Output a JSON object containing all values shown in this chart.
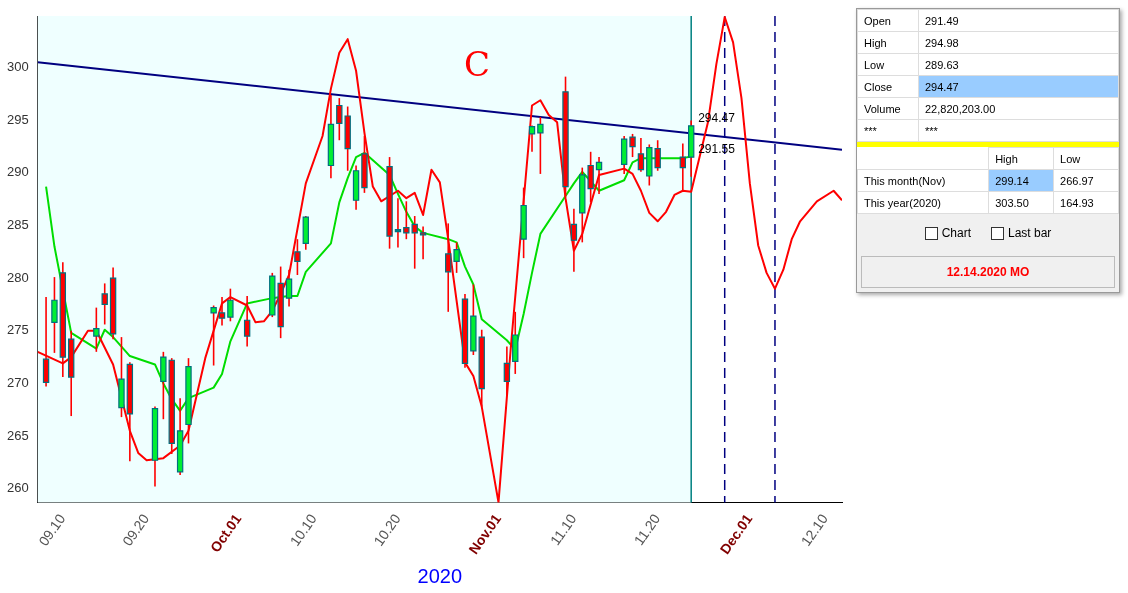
{
  "chart_data": {
    "type": "candlestick",
    "xlabel": "2020",
    "xlim": [
      "2020-09-07",
      "2020-12-12"
    ],
    "xticks": [
      {
        "value": "2020-09-10",
        "label": "09.10"
      },
      {
        "value": "2020-09-20",
        "label": "09.20"
      },
      {
        "value": "2020-10-01",
        "label": "Oct.01"
      },
      {
        "value": "2020-10-10",
        "label": "10.10"
      },
      {
        "value": "2020-10-20",
        "label": "10.20"
      },
      {
        "value": "2020-11-01",
        "label": "Nov.01"
      },
      {
        "value": "2020-11-10",
        "label": "11.10"
      },
      {
        "value": "2020-11-20",
        "label": "11.20"
      },
      {
        "value": "2020-12-01",
        "label": "Dec.01"
      },
      {
        "value": "2020-12-10",
        "label": "12.10"
      }
    ],
    "ylim": [
      258.7,
      304.9
    ],
    "yticks": [
      260,
      265,
      270,
      275,
      280,
      285,
      290,
      295,
      300
    ],
    "grid": false,
    "legend": false,
    "series": [
      {
        "type": "line",
        "color": "#ff0000",
        "x": [
          "2020-09-07",
          "2020-09-10",
          "2020-09-11",
          "2020-09-13",
          "2020-09-14",
          "2020-09-16",
          "2020-09-18",
          "2020-09-19",
          "2020-09-20",
          "2020-09-22",
          "2020-09-24",
          "2020-09-25",
          "2020-09-27",
          "2020-09-29",
          "2020-09-30",
          "2020-10-02",
          "2020-10-03",
          "2020-10-04",
          "2020-10-05",
          "2020-10-06",
          "2020-10-07",
          "2020-10-09",
          "2020-10-11",
          "2020-10-12",
          "2020-10-13",
          "2020-10-14",
          "2020-10-15",
          "2020-10-16",
          "2020-10-17",
          "2020-10-18",
          "2020-10-20",
          "2020-10-21",
          "2020-10-22",
          "2020-10-23",
          "2020-10-24",
          "2020-10-25",
          "2020-10-26",
          "2020-10-28",
          "2020-10-29",
          "2020-10-30",
          "2020-11-01",
          "2020-11-02T12:00",
          "2020-11-05",
          "2020-11-06",
          "2020-11-07",
          "2020-11-08",
          "2020-11-09",
          "2020-11-10",
          "2020-11-11",
          "2020-11-13",
          "2020-11-16",
          "2020-11-17",
          "2020-11-18",
          "2020-11-19",
          "2020-11-20",
          "2020-11-21",
          "2020-11-22",
          "2020-11-23",
          "2020-11-24",
          "2020-11-26",
          "2020-11-27",
          "2020-11-28",
          "2020-11-29",
          "2020-11-30",
          "2020-12-01",
          "2020-12-02",
          "2020-12-03",
          "2020-12-04",
          "2020-12-05",
          "2020-12-06",
          "2020-12-07",
          "2020-12-09",
          "2020-12-11",
          "2020-12-12"
        ],
        "values": [
          273.0,
          271.9,
          272.5,
          275.0,
          275.0,
          271.8,
          265.5,
          263.4,
          262.7,
          262.9,
          264.1,
          265.5,
          272.4,
          277.6,
          278.2,
          277.4,
          275.8,
          275.9,
          276.9,
          278.5,
          280.3,
          289.0,
          293.5,
          298.0,
          301.4,
          302.7,
          299.7,
          293.8,
          288.7,
          287.3,
          288.3,
          287.6,
          288.1,
          286.0,
          290.3,
          289.1,
          283.7,
          272.0,
          270.7,
          267.8,
          258.7,
          273.7,
          296.4,
          296.9,
          295.5,
          294.8,
          287.6,
          282.6,
          284.2,
          289.8,
          290.4,
          289.9,
          288.3,
          286.2,
          285.4,
          286.3,
          287.9,
          288.3,
          288.2,
          294.8,
          300.3,
          304.8,
          302.4,
          297.1,
          289.0,
          283.1,
          280.5,
          279.0,
          280.8,
          283.7,
          285.4,
          287.3,
          288.3,
          287.4
        ]
      },
      {
        "type": "line",
        "color": "#00dd00",
        "x": [
          "2020-09-08",
          "2020-09-09",
          "2020-09-11",
          "2020-09-14",
          "2020-09-15",
          "2020-09-16",
          "2020-09-17",
          "2020-09-18",
          "2020-09-21",
          "2020-09-22",
          "2020-09-23",
          "2020-09-24",
          "2020-09-25",
          "2020-09-28",
          "2020-09-29",
          "2020-09-30",
          "2020-10-02",
          "2020-10-05",
          "2020-10-06",
          "2020-10-07",
          "2020-10-08",
          "2020-10-09",
          "2020-10-12",
          "2020-10-13",
          "2020-10-14",
          "2020-10-15",
          "2020-10-16",
          "2020-10-19",
          "2020-10-20",
          "2020-10-21",
          "2020-10-22",
          "2020-10-23",
          "2020-10-26",
          "2020-10-27",
          "2020-10-28",
          "2020-10-29",
          "2020-10-30",
          "2020-11-02",
          "2020-11-03",
          "2020-11-04",
          "2020-11-05",
          "2020-11-06",
          "2020-11-09",
          "2020-11-10",
          "2020-11-11",
          "2020-11-12",
          "2020-11-13",
          "2020-11-16",
          "2020-11-17",
          "2020-11-18",
          "2020-11-19",
          "2020-11-20",
          "2020-11-23",
          "2020-11-24"
        ],
        "values": [
          288.7,
          283.0,
          274.8,
          273.3,
          275.1,
          274.4,
          273.5,
          272.6,
          271.8,
          270.0,
          268.5,
          267.4,
          268.6,
          269.6,
          270.9,
          274.0,
          277.6,
          278.1,
          278.2,
          278.3,
          278.3,
          280.6,
          283.3,
          287.2,
          289.5,
          291.5,
          291.9,
          289.8,
          288.0,
          286.3,
          284.9,
          284.3,
          283.7,
          283.4,
          281.1,
          279.4,
          276.1,
          274.1,
          273.2,
          276.6,
          280.5,
          284.2,
          287.8,
          289.0,
          290.1,
          289.2,
          288.3,
          289.3,
          291.0,
          291.4,
          291.4,
          291.4,
          291.4,
          291.55
        ]
      },
      {
        "type": "line",
        "color": "#000080",
        "x": [
          "2020-09-07",
          "2020-12-12"
        ],
        "values": [
          300.5,
          292.2
        ]
      },
      {
        "type": "candlestick",
        "color": "#ff0000",
        "x": [
          "2020-09-08",
          "2020-09-09",
          "2020-09-10",
          "2020-09-11",
          "2020-09-14",
          "2020-09-15",
          "2020-09-16",
          "2020-09-17",
          "2020-09-18",
          "2020-09-21",
          "2020-09-22",
          "2020-09-23",
          "2020-09-24",
          "2020-09-25",
          "2020-09-28",
          "2020-09-29",
          "2020-09-30",
          "2020-10-02",
          "2020-10-05",
          "2020-10-06",
          "2020-10-07",
          "2020-10-08",
          "2020-10-09",
          "2020-10-12",
          "2020-10-13",
          "2020-10-14",
          "2020-10-15",
          "2020-10-16",
          "2020-10-19",
          "2020-10-20",
          "2020-10-21",
          "2020-10-22",
          "2020-10-23",
          "2020-10-26",
          "2020-10-27",
          "2020-10-28",
          "2020-10-29",
          "2020-10-30",
          "2020-11-02",
          "2020-11-03",
          "2020-11-04",
          "2020-11-05",
          "2020-11-06",
          "2020-11-09",
          "2020-11-10",
          "2020-11-11",
          "2020-11-12",
          "2020-11-13",
          "2020-11-16",
          "2020-11-17",
          "2020-11-18",
          "2020-11-19",
          "2020-11-20",
          "2020-11-23",
          "2020-11-24"
        ],
        "ohlc": [
          [
            272.3,
            278.2,
            269.7,
            270.1
          ],
          [
            275.8,
            280.1,
            272.9,
            277.9
          ],
          [
            280.5,
            281.5,
            270.6,
            272.5
          ],
          [
            274.2,
            275.0,
            266.9,
            270.6
          ],
          [
            274.5,
            277.2,
            273.0,
            275.2
          ],
          [
            278.5,
            279.5,
            275.6,
            277.5
          ],
          [
            280.0,
            281.0,
            274.2,
            274.7
          ],
          [
            267.7,
            274.4,
            266.8,
            270.4
          ],
          [
            271.8,
            272.0,
            262.6,
            267.1
          ],
          [
            262.7,
            267.8,
            260.2,
            267.6
          ],
          [
            270.2,
            273.0,
            266.6,
            272.5
          ],
          [
            272.2,
            272.4,
            263.3,
            264.3
          ],
          [
            261.6,
            268.6,
            261.3,
            265.5
          ],
          [
            266.1,
            272.4,
            264.3,
            271.6
          ],
          [
            276.7,
            277.4,
            271.7,
            277.2
          ],
          [
            276.7,
            278.2,
            275.5,
            276.2
          ],
          [
            276.3,
            279.0,
            275.9,
            277.9
          ],
          [
            276.0,
            278.3,
            273.5,
            274.5
          ],
          [
            276.5,
            280.5,
            276.3,
            280.2
          ],
          [
            279.5,
            281.1,
            274.3,
            275.4
          ],
          [
            278.1,
            280.8,
            277.3,
            279.9
          ],
          [
            282.5,
            283.7,
            280.3,
            281.6
          ],
          [
            283.3,
            285.9,
            282.7,
            285.8
          ],
          [
            290.7,
            297.4,
            289.5,
            294.6
          ],
          [
            296.4,
            297.1,
            293.1,
            294.7
          ],
          [
            295.4,
            296.3,
            290.2,
            292.3
          ],
          [
            287.4,
            290.7,
            286.5,
            290.2
          ],
          [
            291.8,
            293.5,
            288.1,
            288.6
          ],
          [
            290.6,
            291.5,
            282.8,
            284.0
          ],
          [
            284.6,
            287.6,
            282.9,
            284.6
          ],
          [
            284.8,
            287.3,
            283.7,
            284.3
          ],
          [
            285.1,
            285.9,
            280.9,
            284.3
          ],
          [
            284.3,
            284.9,
            281.8,
            284.2
          ],
          [
            282.3,
            285.2,
            276.8,
            280.6
          ],
          [
            281.6,
            283.4,
            280.5,
            282.7
          ],
          [
            278.0,
            278.5,
            271.5,
            271.9
          ],
          [
            273.1,
            279.4,
            272.7,
            276.4
          ],
          [
            274.4,
            275.1,
            267.8,
            269.5
          ],
          [
            271.9,
            273.5,
            268.8,
            270.2
          ],
          [
            272.1,
            276.8,
            270.9,
            274.6
          ],
          [
            283.7,
            288.6,
            281.9,
            286.9
          ],
          [
            293.7,
            294.5,
            292.0,
            294.4
          ],
          [
            293.8,
            295.3,
            289.9,
            294.6
          ],
          [
            297.7,
            299.14,
            287.8,
            288.7
          ],
          [
            285.1,
            286.6,
            280.6,
            283.6
          ],
          [
            286.2,
            290.5,
            283.4,
            289.8
          ],
          [
            290.7,
            292.0,
            287.2,
            288.5
          ],
          [
            290.3,
            291.5,
            288.0,
            291.0
          ],
          [
            290.8,
            293.5,
            289.9,
            293.2
          ],
          [
            293.4,
            293.7,
            291.5,
            292.5
          ],
          [
            291.8,
            293.3,
            290.1,
            290.3
          ],
          [
            289.7,
            292.7,
            288.8,
            292.4
          ],
          [
            292.3,
            293.1,
            290.2,
            290.5
          ],
          [
            291.5,
            292.8,
            288.3,
            290.5
          ],
          [
            291.49,
            294.98,
            289.63,
            294.47
          ]
        ],
        "colors": [
          "#ff0000",
          "#00ee33",
          "#ff0000",
          "#ff0000",
          "#00ee33",
          "#ff0000",
          "#ff0000",
          "#00ee33",
          "#ff0000",
          "#00ee33",
          "#00ee33",
          "#ff0000",
          "#00ee33",
          "#00ee33",
          "#00ee33",
          "#ff0000",
          "#00ee33",
          "#ff0000",
          "#00ee33",
          "#ff0000",
          "#00ee33",
          "#ff0000",
          "#00ee33",
          "#00ee33",
          "#ff0000",
          "#ff0000",
          "#00ee33",
          "#ff0000",
          "#ff0000",
          "#008080",
          "#ff0000",
          "#ff0000",
          "#ff0000",
          "#ff0000",
          "#00ee33",
          "#ff0000",
          "#00ee33",
          "#ff0000",
          "#ff0000",
          "#00ee33",
          "#00ee33",
          "#00ee33",
          "#00ee33",
          "#ff0000",
          "#ff0000",
          "#00ee33",
          "#ff0000",
          "#00ee33",
          "#00ee33",
          "#ff0000",
          "#ff0000",
          "#00ee33",
          "#ff0000",
          "#ff0000",
          "#00ee33"
        ]
      }
    ],
    "bands": [
      {
        "axis": "x",
        "from": "2020-09-07",
        "to": "2020-11-24",
        "color": "#efffff"
      }
    ],
    "ref_lines": [
      {
        "axis": "x",
        "value": "2020-11-24",
        "color": "#008080"
      },
      {
        "axis": "x",
        "value": "2020-11-28",
        "color": "#000080",
        "line_style": "dashed"
      },
      {
        "axis": "x",
        "value": "2020-12-04",
        "color": "#000080",
        "line_style": "dashed"
      }
    ],
    "annotations": [
      {
        "text": "294.47",
        "x": "2020-11-24",
        "y": 294.47
      },
      {
        "text": "291.55",
        "x": "2020-11-24",
        "y": 291.55
      },
      "Open",
      "291.49",
      "High",
      "294.98",
      "Low",
      "289.63",
      "Close",
      "294.47",
      "Volume",
      "22,820,203.00",
      "***",
      "***",
      "High",
      "Low",
      "This month(Nov)",
      "299.14",
      "266.97",
      "This year(2020)",
      "303.50",
      "164.93",
      "Chart",
      "Last bar",
      "12.14.2020 MO",
      "C"
    ]
  }
}
